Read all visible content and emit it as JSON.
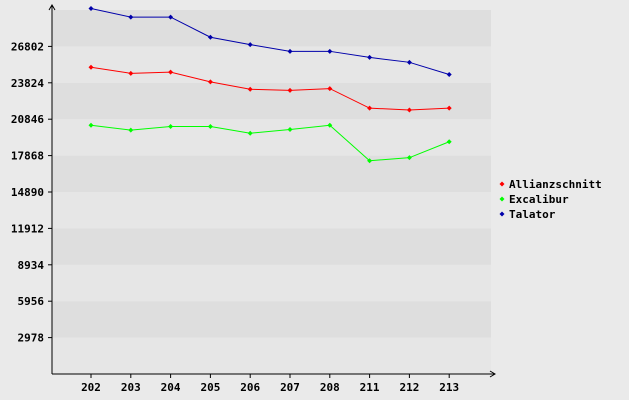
{
  "chart_data": {
    "type": "line",
    "title": "",
    "xlabel": "",
    "ylabel": "",
    "categories": [
      "202",
      "203",
      "204",
      "205",
      "206",
      "207",
      "208",
      "211",
      "212",
      "213"
    ],
    "yticks": [
      "2978",
      "5956",
      "8934",
      "11912",
      "14890",
      "17868",
      "20846",
      "23824",
      "26802"
    ],
    "ylim": [
      0,
      29780
    ],
    "grid": true,
    "legend_position": "right",
    "series": [
      {
        "name": "Allianzschnitt",
        "color": "#ff0000",
        "values": [
          25100,
          24600,
          24700,
          23900,
          23300,
          23200,
          23350,
          21750,
          21600,
          21750
        ]
      },
      {
        "name": "Excalibur",
        "color": "#00ff00",
        "values": [
          20350,
          19950,
          20250,
          20250,
          19700,
          20000,
          20350,
          17450,
          17700,
          19000
        ]
      },
      {
        "name": "Talator",
        "color": "#0000aa",
        "values": [
          29900,
          29200,
          29200,
          27550,
          26950,
          26400,
          26400,
          25900,
          25500,
          24500
        ]
      }
    ]
  }
}
